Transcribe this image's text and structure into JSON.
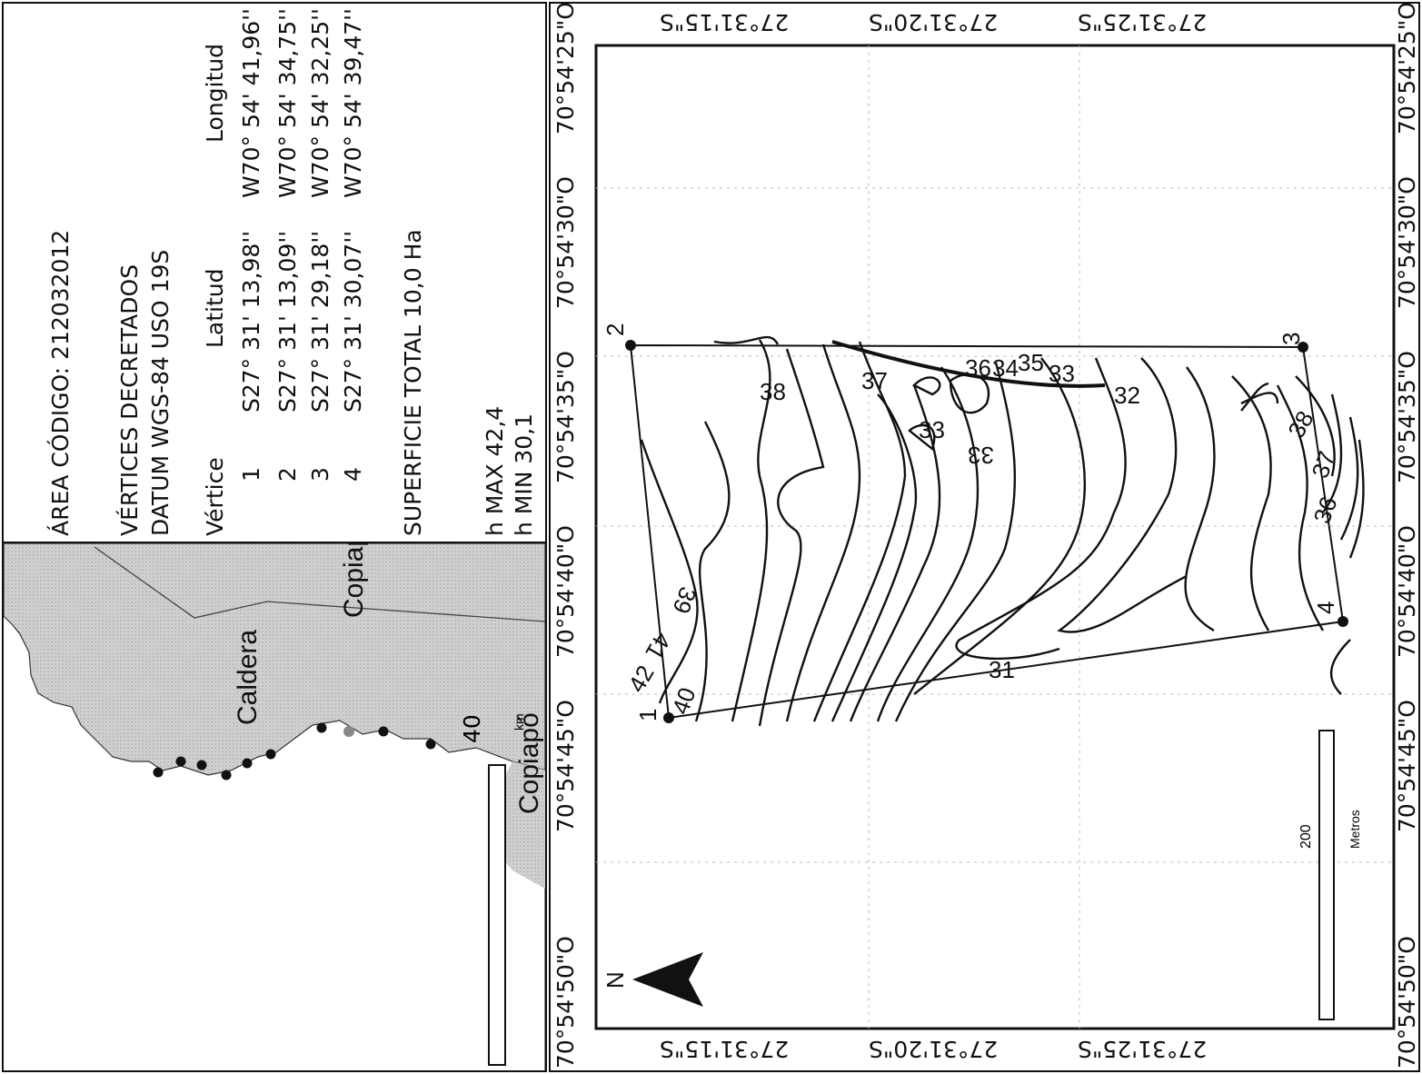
{
  "info": {
    "area_code": "ÁREA CÓDIGO: 212032012",
    "vertices_title": "VÉRTICES DECRETADOS",
    "datum": "DATUM WGS-84 USO 19S",
    "table": {
      "headers": [
        "Vértice",
        "Latitud",
        "Longitud"
      ],
      "rows": [
        [
          "1",
          "S27° 31' 13,98''",
          "W70° 54' 41,96''"
        ],
        [
          "2",
          "S27° 31' 13,09''",
          "W70° 54' 34,75''"
        ],
        [
          "3",
          "S27° 31' 29,18''",
          "W70° 54' 32,25''"
        ],
        [
          "4",
          "S27° 31' 30,07''",
          "W70° 54' 39,47''"
        ]
      ]
    },
    "surface": "SUPERFICIE TOTAL 10,0 Ha",
    "h_max": "h MAX 42,4",
    "h_min": "h MIN  30,1"
  },
  "inset_map": {
    "places": [
      "Caldera",
      "Copiapó",
      "Copiapó"
    ],
    "scale_value": "40",
    "scale_unit": "km",
    "land_color": "#c9c9c9",
    "sea_color": "#ffffff"
  },
  "main_map": {
    "lon_ticks": [
      "70°54'25\"O",
      "70°54'30\"O",
      "70°54'35\"O",
      "70°54'40\"O",
      "70°54'45\"O",
      "70°54'50\"O"
    ],
    "lat_ticks": [
      "27°31'15\"S",
      "27°31'20\"S",
      "27°31'25\"S"
    ],
    "vertex_labels": [
      "1",
      "2",
      "3",
      "4"
    ],
    "contour_labels": [
      "38",
      "37",
      "36",
      "34",
      "35",
      "33",
      "33",
      "33",
      "32",
      "31",
      "38",
      "37",
      "36",
      "39",
      "41",
      "42",
      "40"
    ],
    "north": "N",
    "scale_value": "200",
    "scale_unit": "Metros"
  }
}
